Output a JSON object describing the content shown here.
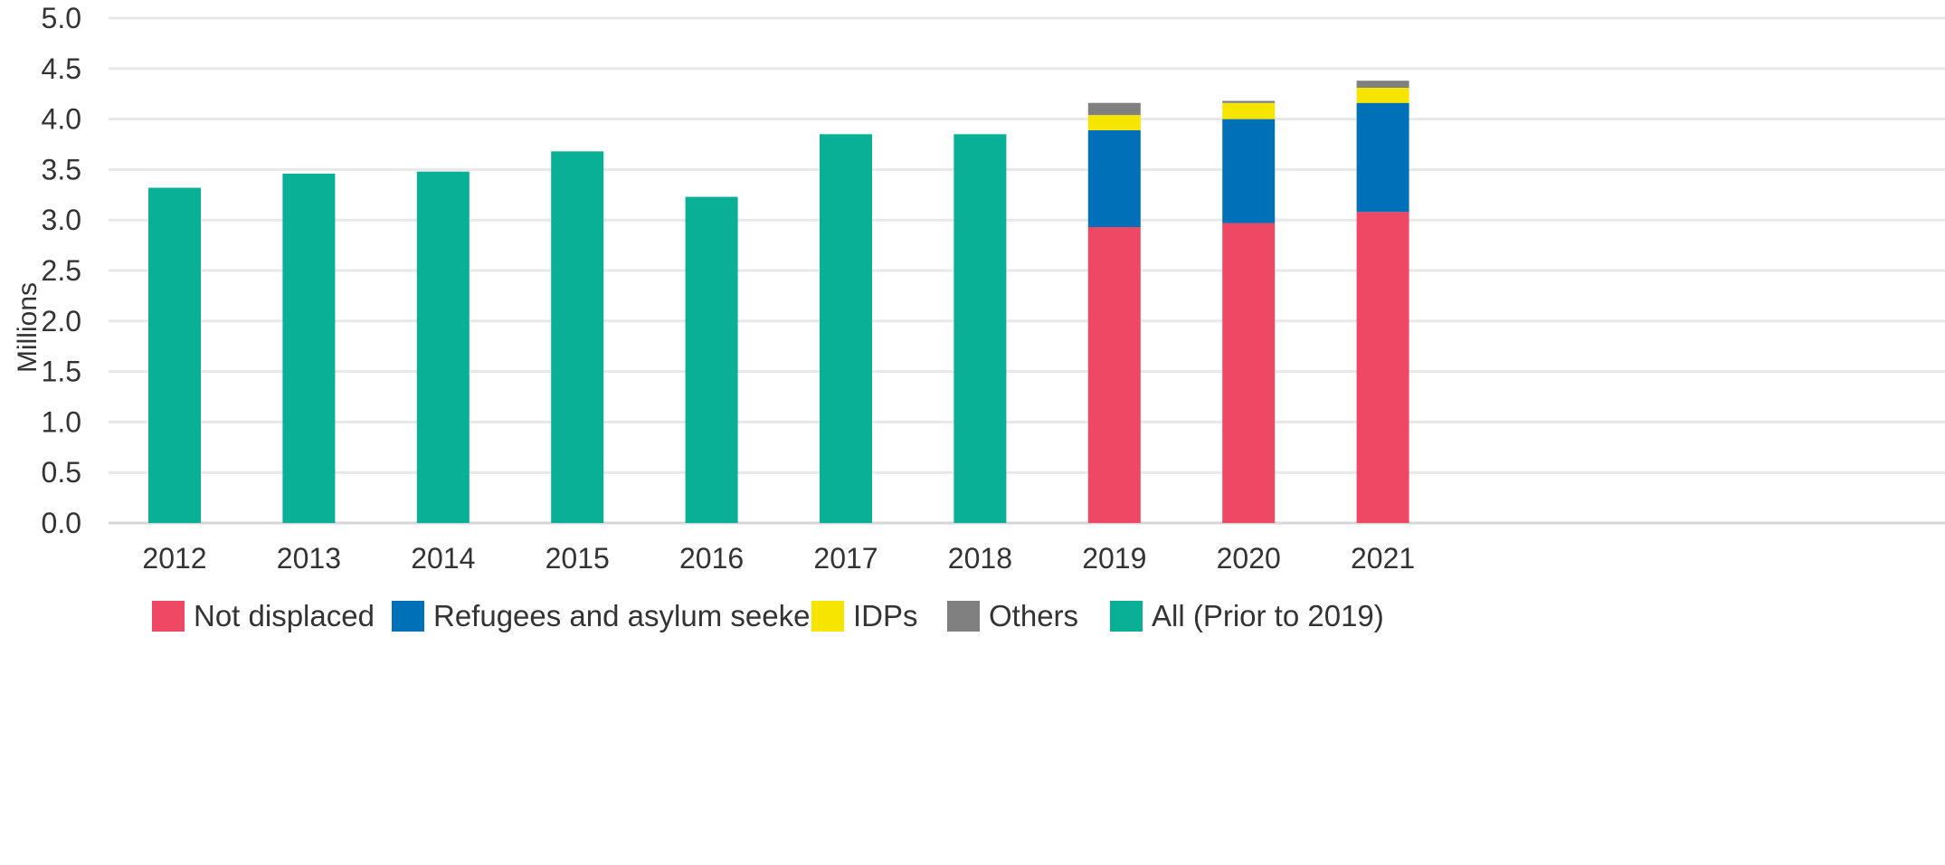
{
  "chart_data": {
    "type": "bar",
    "stacked": true,
    "title": "",
    "xlabel": "",
    "ylabel": "Millions",
    "ylim": [
      0,
      5
    ],
    "yticks": [
      "0.0",
      "0.5",
      "1.0",
      "1.5",
      "2.0",
      "2.5",
      "3.0",
      "3.5",
      "4.0",
      "4.5",
      "5.0"
    ],
    "grid": true,
    "legend_position": "bottom",
    "categories": [
      "2012",
      "2013",
      "2014",
      "2015",
      "2016",
      "2017",
      "2018",
      "2019",
      "2020",
      "2021"
    ],
    "series": [
      {
        "name": "Not displaced",
        "color": "#EE4865",
        "values": [
          0,
          0,
          0,
          0,
          0,
          0,
          0,
          2.93,
          2.97,
          3.08
        ]
      },
      {
        "name": "Refugees and asylum seekers",
        "color": "#0070B8",
        "values": [
          0,
          0,
          0,
          0,
          0,
          0,
          0,
          0.96,
          1.03,
          1.08
        ]
      },
      {
        "name": "IDPs",
        "color": "#F5E500",
        "values": [
          0,
          0,
          0,
          0,
          0,
          0,
          0,
          0.15,
          0.16,
          0.15
        ]
      },
      {
        "name": "Others",
        "color": "#808080",
        "values": [
          0,
          0,
          0,
          0,
          0,
          0,
          0,
          0.12,
          0.02,
          0.07
        ]
      },
      {
        "name": "All (Prior to 2019)",
        "color": "#0AB096",
        "values": [
          3.32,
          3.46,
          3.48,
          3.68,
          3.23,
          3.85,
          3.85,
          0,
          0,
          0
        ]
      }
    ]
  }
}
